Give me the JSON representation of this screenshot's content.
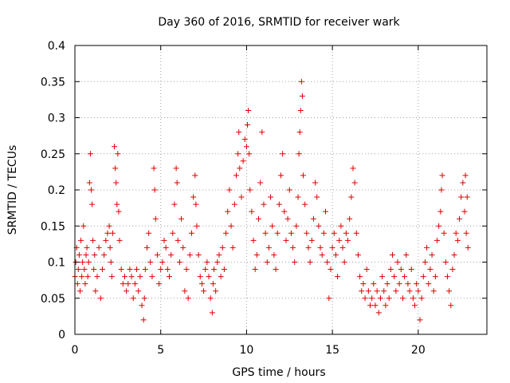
{
  "chart_data": {
    "type": "scatter",
    "title": "Day 360 of 2016, SRMTID for receiver wark",
    "xlabel": "GPS time / hours",
    "ylabel": "SRMTID / TECUs",
    "xlim": [
      0,
      24
    ],
    "ylim": [
      0,
      0.4
    ],
    "xticks": [
      0,
      5,
      10,
      15,
      20
    ],
    "xtick_labels": [
      "0",
      "5",
      "10",
      "15",
      "20"
    ],
    "yticks": [
      0,
      0.05,
      0.1,
      0.15,
      0.2,
      0.25,
      0.3,
      0.35,
      0.4
    ],
    "ytick_labels": [
      "0",
      "0.05",
      "0.1",
      "0.15",
      "0.2",
      "0.25",
      "0.3",
      "0.35",
      "0.4"
    ],
    "grid": true,
    "marker": "+",
    "color": "#e00000",
    "series": [
      {
        "name": "SRMTID",
        "points": [
          [
            0.0,
            0.08
          ],
          [
            0.05,
            0.1
          ],
          [
            0.1,
            0.12
          ],
          [
            0.15,
            0.07
          ],
          [
            0.2,
            0.09
          ],
          [
            0.25,
            0.11
          ],
          [
            0.3,
            0.06
          ],
          [
            0.35,
            0.13
          ],
          [
            0.4,
            0.08
          ],
          [
            0.45,
            0.1
          ],
          [
            0.5,
            0.15
          ],
          [
            0.55,
            0.09
          ],
          [
            0.6,
            0.07
          ],
          [
            0.65,
            0.11
          ],
          [
            0.7,
            0.12
          ],
          [
            0.75,
            0.08
          ],
          [
            0.8,
            0.1
          ],
          [
            0.85,
            0.21
          ],
          [
            0.9,
            0.25
          ],
          [
            0.95,
            0.2
          ],
          [
            1.0,
            0.18
          ],
          [
            1.05,
            0.13
          ],
          [
            1.1,
            0.09
          ],
          [
            1.15,
            0.11
          ],
          [
            1.2,
            0.06
          ],
          [
            1.3,
            0.08
          ],
          [
            1.4,
            0.12
          ],
          [
            1.5,
            0.05
          ],
          [
            1.6,
            0.09
          ],
          [
            1.7,
            0.11
          ],
          [
            1.8,
            0.13
          ],
          [
            1.9,
            0.14
          ],
          [
            2.0,
            0.15
          ],
          [
            2.05,
            0.12
          ],
          [
            2.1,
            0.1
          ],
          [
            2.15,
            0.08
          ],
          [
            2.2,
            0.14
          ],
          [
            2.3,
            0.26
          ],
          [
            2.35,
            0.23
          ],
          [
            2.4,
            0.21
          ],
          [
            2.45,
            0.18
          ],
          [
            2.5,
            0.25
          ],
          [
            2.55,
            0.17
          ],
          [
            2.6,
            0.13
          ],
          [
            2.7,
            0.09
          ],
          [
            2.8,
            0.07
          ],
          [
            2.9,
            0.08
          ],
          [
            3.0,
            0.06
          ],
          [
            3.1,
            0.07
          ],
          [
            3.2,
            0.09
          ],
          [
            3.3,
            0.08
          ],
          [
            3.4,
            0.05
          ],
          [
            3.5,
            0.07
          ],
          [
            3.6,
            0.09
          ],
          [
            3.7,
            0.06
          ],
          [
            3.8,
            0.08
          ],
          [
            3.9,
            0.04
          ],
          [
            4.0,
            0.02
          ],
          [
            4.05,
            0.05
          ],
          [
            4.1,
            0.09
          ],
          [
            4.2,
            0.12
          ],
          [
            4.3,
            0.14
          ],
          [
            4.4,
            0.1
          ],
          [
            4.5,
            0.08
          ],
          [
            4.6,
            0.23
          ],
          [
            4.65,
            0.2
          ],
          [
            4.7,
            0.16
          ],
          [
            4.8,
            0.11
          ],
          [
            4.9,
            0.07
          ],
          [
            5.0,
            0.09
          ],
          [
            5.1,
            0.1
          ],
          [
            5.2,
            0.13
          ],
          [
            5.3,
            0.12
          ],
          [
            5.4,
            0.09
          ],
          [
            5.5,
            0.08
          ],
          [
            5.6,
            0.11
          ],
          [
            5.7,
            0.14
          ],
          [
            5.8,
            0.18
          ],
          [
            5.9,
            0.23
          ],
          [
            5.95,
            0.21
          ],
          [
            6.0,
            0.13
          ],
          [
            6.1,
            0.1
          ],
          [
            6.2,
            0.16
          ],
          [
            6.3,
            0.12
          ],
          [
            6.4,
            0.06
          ],
          [
            6.5,
            0.09
          ],
          [
            6.6,
            0.05
          ],
          [
            6.7,
            0.11
          ],
          [
            6.8,
            0.14
          ],
          [
            6.9,
            0.19
          ],
          [
            7.0,
            0.22
          ],
          [
            7.05,
            0.18
          ],
          [
            7.1,
            0.15
          ],
          [
            7.2,
            0.11
          ],
          [
            7.3,
            0.08
          ],
          [
            7.4,
            0.07
          ],
          [
            7.5,
            0.06
          ],
          [
            7.6,
            0.09
          ],
          [
            7.7,
            0.1
          ],
          [
            7.8,
            0.08
          ],
          [
            7.9,
            0.05
          ],
          [
            8.0,
            0.03
          ],
          [
            8.05,
            0.07
          ],
          [
            8.1,
            0.09
          ],
          [
            8.2,
            0.06
          ],
          [
            8.3,
            0.1
          ],
          [
            8.4,
            0.11
          ],
          [
            8.5,
            0.08
          ],
          [
            8.6,
            0.12
          ],
          [
            8.7,
            0.09
          ],
          [
            8.8,
            0.14
          ],
          [
            8.9,
            0.17
          ],
          [
            9.0,
            0.2
          ],
          [
            9.1,
            0.15
          ],
          [
            9.2,
            0.12
          ],
          [
            9.3,
            0.18
          ],
          [
            9.4,
            0.22
          ],
          [
            9.5,
            0.25
          ],
          [
            9.55,
            0.28
          ],
          [
            9.6,
            0.23
          ],
          [
            9.7,
            0.19
          ],
          [
            9.8,
            0.24
          ],
          [
            9.9,
            0.27
          ],
          [
            10.0,
            0.26
          ],
          [
            10.05,
            0.29
          ],
          [
            10.1,
            0.31
          ],
          [
            10.15,
            0.25
          ],
          [
            10.2,
            0.2
          ],
          [
            10.3,
            0.17
          ],
          [
            10.4,
            0.13
          ],
          [
            10.5,
            0.09
          ],
          [
            10.6,
            0.11
          ],
          [
            10.7,
            0.16
          ],
          [
            10.8,
            0.21
          ],
          [
            10.9,
            0.28
          ],
          [
            11.0,
            0.18
          ],
          [
            11.1,
            0.14
          ],
          [
            11.2,
            0.1
          ],
          [
            11.3,
            0.12
          ],
          [
            11.4,
            0.19
          ],
          [
            11.5,
            0.15
          ],
          [
            11.6,
            0.11
          ],
          [
            11.7,
            0.09
          ],
          [
            11.8,
            0.14
          ],
          [
            11.9,
            0.18
          ],
          [
            12.0,
            0.22
          ],
          [
            12.1,
            0.25
          ],
          [
            12.2,
            0.17
          ],
          [
            12.3,
            0.13
          ],
          [
            12.4,
            0.16
          ],
          [
            12.5,
            0.2
          ],
          [
            12.6,
            0.14
          ],
          [
            12.7,
            0.12
          ],
          [
            12.8,
            0.1
          ],
          [
            12.9,
            0.15
          ],
          [
            13.0,
            0.19
          ],
          [
            13.05,
            0.25
          ],
          [
            13.1,
            0.28
          ],
          [
            13.15,
            0.31
          ],
          [
            13.2,
            0.35
          ],
          [
            13.25,
            0.33
          ],
          [
            13.3,
            0.22
          ],
          [
            13.4,
            0.18
          ],
          [
            13.5,
            0.14
          ],
          [
            13.6,
            0.12
          ],
          [
            13.7,
            0.1
          ],
          [
            13.8,
            0.13
          ],
          [
            13.9,
            0.16
          ],
          [
            14.0,
            0.21
          ],
          [
            14.1,
            0.19
          ],
          [
            14.2,
            0.15
          ],
          [
            14.3,
            0.12
          ],
          [
            14.4,
            0.11
          ],
          [
            14.5,
            0.14
          ],
          [
            14.6,
            0.17
          ],
          [
            14.7,
            0.1
          ],
          [
            14.8,
            0.05
          ],
          [
            14.9,
            0.09
          ],
          [
            15.0,
            0.12
          ],
          [
            15.1,
            0.14
          ],
          [
            15.2,
            0.11
          ],
          [
            15.3,
            0.08
          ],
          [
            15.4,
            0.13
          ],
          [
            15.5,
            0.15
          ],
          [
            15.6,
            0.12
          ],
          [
            15.7,
            0.1
          ],
          [
            15.8,
            0.14
          ],
          [
            15.9,
            0.13
          ],
          [
            16.0,
            0.16
          ],
          [
            16.1,
            0.19
          ],
          [
            16.2,
            0.23
          ],
          [
            16.3,
            0.21
          ],
          [
            16.4,
            0.14
          ],
          [
            16.5,
            0.11
          ],
          [
            16.6,
            0.08
          ],
          [
            16.7,
            0.06
          ],
          [
            16.8,
            0.07
          ],
          [
            16.9,
            0.05
          ],
          [
            17.0,
            0.09
          ],
          [
            17.1,
            0.06
          ],
          [
            17.2,
            0.04
          ],
          [
            17.3,
            0.05
          ],
          [
            17.4,
            0.07
          ],
          [
            17.5,
            0.04
          ],
          [
            17.6,
            0.06
          ],
          [
            17.7,
            0.03
          ],
          [
            17.8,
            0.05
          ],
          [
            17.9,
            0.08
          ],
          [
            18.0,
            0.06
          ],
          [
            18.1,
            0.04
          ],
          [
            18.2,
            0.07
          ],
          [
            18.3,
            0.05
          ],
          [
            18.4,
            0.09
          ],
          [
            18.5,
            0.11
          ],
          [
            18.6,
            0.08
          ],
          [
            18.7,
            0.06
          ],
          [
            18.8,
            0.1
          ],
          [
            18.9,
            0.07
          ],
          [
            19.0,
            0.09
          ],
          [
            19.1,
            0.05
          ],
          [
            19.2,
            0.08
          ],
          [
            19.3,
            0.11
          ],
          [
            19.4,
            0.07
          ],
          [
            19.5,
            0.06
          ],
          [
            19.6,
            0.09
          ],
          [
            19.7,
            0.05
          ],
          [
            19.8,
            0.04
          ],
          [
            19.9,
            0.07
          ],
          [
            20.0,
            0.06
          ],
          [
            20.1,
            0.02
          ],
          [
            20.2,
            0.05
          ],
          [
            20.3,
            0.08
          ],
          [
            20.4,
            0.1
          ],
          [
            20.5,
            0.12
          ],
          [
            20.6,
            0.07
          ],
          [
            20.7,
            0.09
          ],
          [
            20.8,
            0.11
          ],
          [
            20.9,
            0.06
          ],
          [
            21.0,
            0.08
          ],
          [
            21.1,
            0.13
          ],
          [
            21.2,
            0.15
          ],
          [
            21.3,
            0.17
          ],
          [
            21.35,
            0.2
          ],
          [
            21.4,
            0.22
          ],
          [
            21.5,
            0.14
          ],
          [
            21.6,
            0.1
          ],
          [
            21.7,
            0.08
          ],
          [
            21.8,
            0.06
          ],
          [
            21.9,
            0.04
          ],
          [
            22.0,
            0.09
          ],
          [
            22.1,
            0.11
          ],
          [
            22.2,
            0.14
          ],
          [
            22.3,
            0.13
          ],
          [
            22.4,
            0.16
          ],
          [
            22.5,
            0.19
          ],
          [
            22.6,
            0.21
          ],
          [
            22.7,
            0.17
          ],
          [
            22.75,
            0.22
          ],
          [
            22.8,
            0.14
          ],
          [
            22.85,
            0.19
          ],
          [
            22.9,
            0.12
          ]
        ]
      }
    ]
  }
}
